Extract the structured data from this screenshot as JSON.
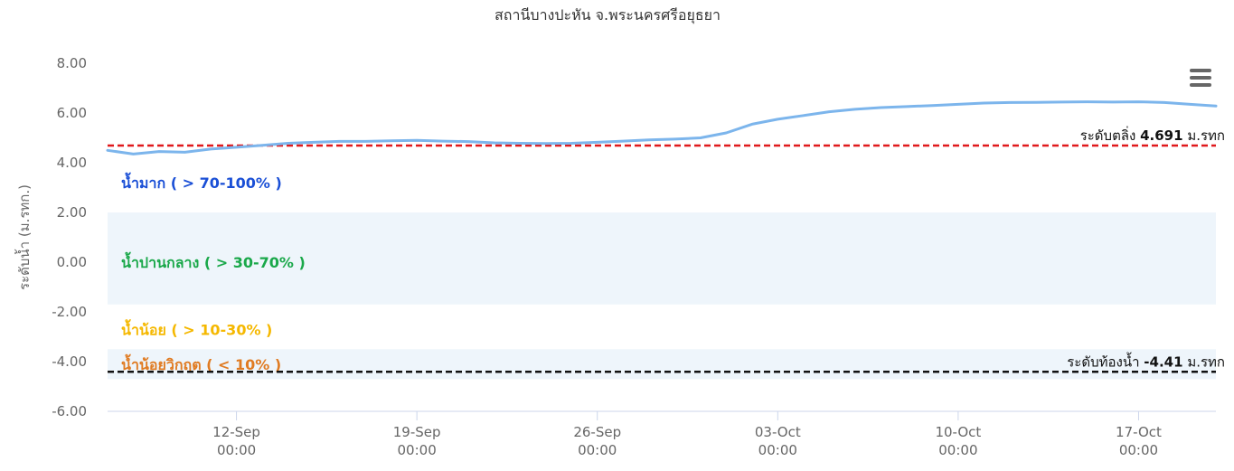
{
  "chart_data": {
    "type": "line",
    "title": "สถานีบางปะหัน จ.พระนครศรีอยุธยา",
    "ylabel": "ระดับน้ำ (ม.รทก.)",
    "xlabel": "",
    "ylim": [
      -6,
      8
    ],
    "yticks": [
      "8.00",
      "6.00",
      "4.00",
      "2.00",
      "0.00",
      "-2.00",
      "-4.00",
      "-6.00"
    ],
    "xlim": [
      "2024-09-07",
      "2024-10-20"
    ],
    "xticks": [
      {
        "date": "12-Sep",
        "time": "00:00"
      },
      {
        "date": "19-Sep",
        "time": "00:00"
      },
      {
        "date": "26-Sep",
        "time": "00:00"
      },
      {
        "date": "03-Oct",
        "time": "00:00"
      },
      {
        "date": "10-Oct",
        "time": "00:00"
      },
      {
        "date": "17-Oct",
        "time": "00:00"
      }
    ],
    "grid": false,
    "series": [
      {
        "color": "#7cb5ec",
        "x": [
          "2024-09-07",
          "2024-09-08",
          "2024-09-09",
          "2024-09-10",
          "2024-09-11",
          "2024-09-12",
          "2024-09-13",
          "2024-09-14",
          "2024-09-15",
          "2024-09-16",
          "2024-09-17",
          "2024-09-18",
          "2024-09-19",
          "2024-09-20",
          "2024-09-21",
          "2024-09-22",
          "2024-09-23",
          "2024-09-24",
          "2024-09-25",
          "2024-09-26",
          "2024-09-27",
          "2024-09-28",
          "2024-09-29",
          "2024-09-30",
          "2024-10-01",
          "2024-10-02",
          "2024-10-03",
          "2024-10-04",
          "2024-10-05",
          "2024-10-06",
          "2024-10-07",
          "2024-10-08",
          "2024-10-09",
          "2024-10-10",
          "2024-10-11",
          "2024-10-12",
          "2024-10-13",
          "2024-10-14",
          "2024-10-15",
          "2024-10-16",
          "2024-10-17",
          "2024-10-18",
          "2024-10-19",
          "2024-10-20"
        ],
        "y": [
          4.5,
          4.35,
          4.45,
          4.42,
          4.55,
          4.62,
          4.7,
          4.78,
          4.82,
          4.86,
          4.86,
          4.88,
          4.9,
          4.87,
          4.85,
          4.8,
          4.78,
          4.77,
          4.78,
          4.82,
          4.87,
          4.92,
          4.95,
          5.0,
          5.2,
          5.55,
          5.75,
          5.9,
          6.05,
          6.15,
          6.22,
          6.26,
          6.3,
          6.35,
          6.4,
          6.42,
          6.43,
          6.44,
          6.45,
          6.44,
          6.45,
          6.42,
          6.35,
          6.28
        ]
      }
    ],
    "bands": [
      {
        "from": -1.7,
        "to": 2.0,
        "color": "#eef5fb"
      },
      {
        "from": -4.7,
        "to": -3.5,
        "color": "#eef5fb"
      }
    ],
    "zones": [
      {
        "label": "น้ำมาก ( > 70-100% )",
        "y": 3.2,
        "color": "#1a4fd6"
      },
      {
        "label": "น้ำปานกลาง ( > 30-70% )",
        "y": 0.0,
        "color": "#1aa84a"
      },
      {
        "label": "น้ำน้อย ( > 10-30% )",
        "y": -2.7,
        "color": "#f5b800"
      },
      {
        "label": "น้ำน้อยวิกฤต ( < 10% )",
        "y": -4.1,
        "color": "#e07b22"
      }
    ],
    "reference_lines": [
      {
        "value": 4.691,
        "label_prefix": "ระดับตลิ่ง",
        "label_value": "4.691",
        "label_unit": "ม.รทก",
        "color": "#e0191c"
      },
      {
        "value": -4.41,
        "label_prefix": "ระดับท้องน้ำ",
        "label_value": "-4.41",
        "label_unit": "ม.รทก",
        "color": "#111111"
      }
    ],
    "menu_icon": "hamburger-menu-icon"
  }
}
